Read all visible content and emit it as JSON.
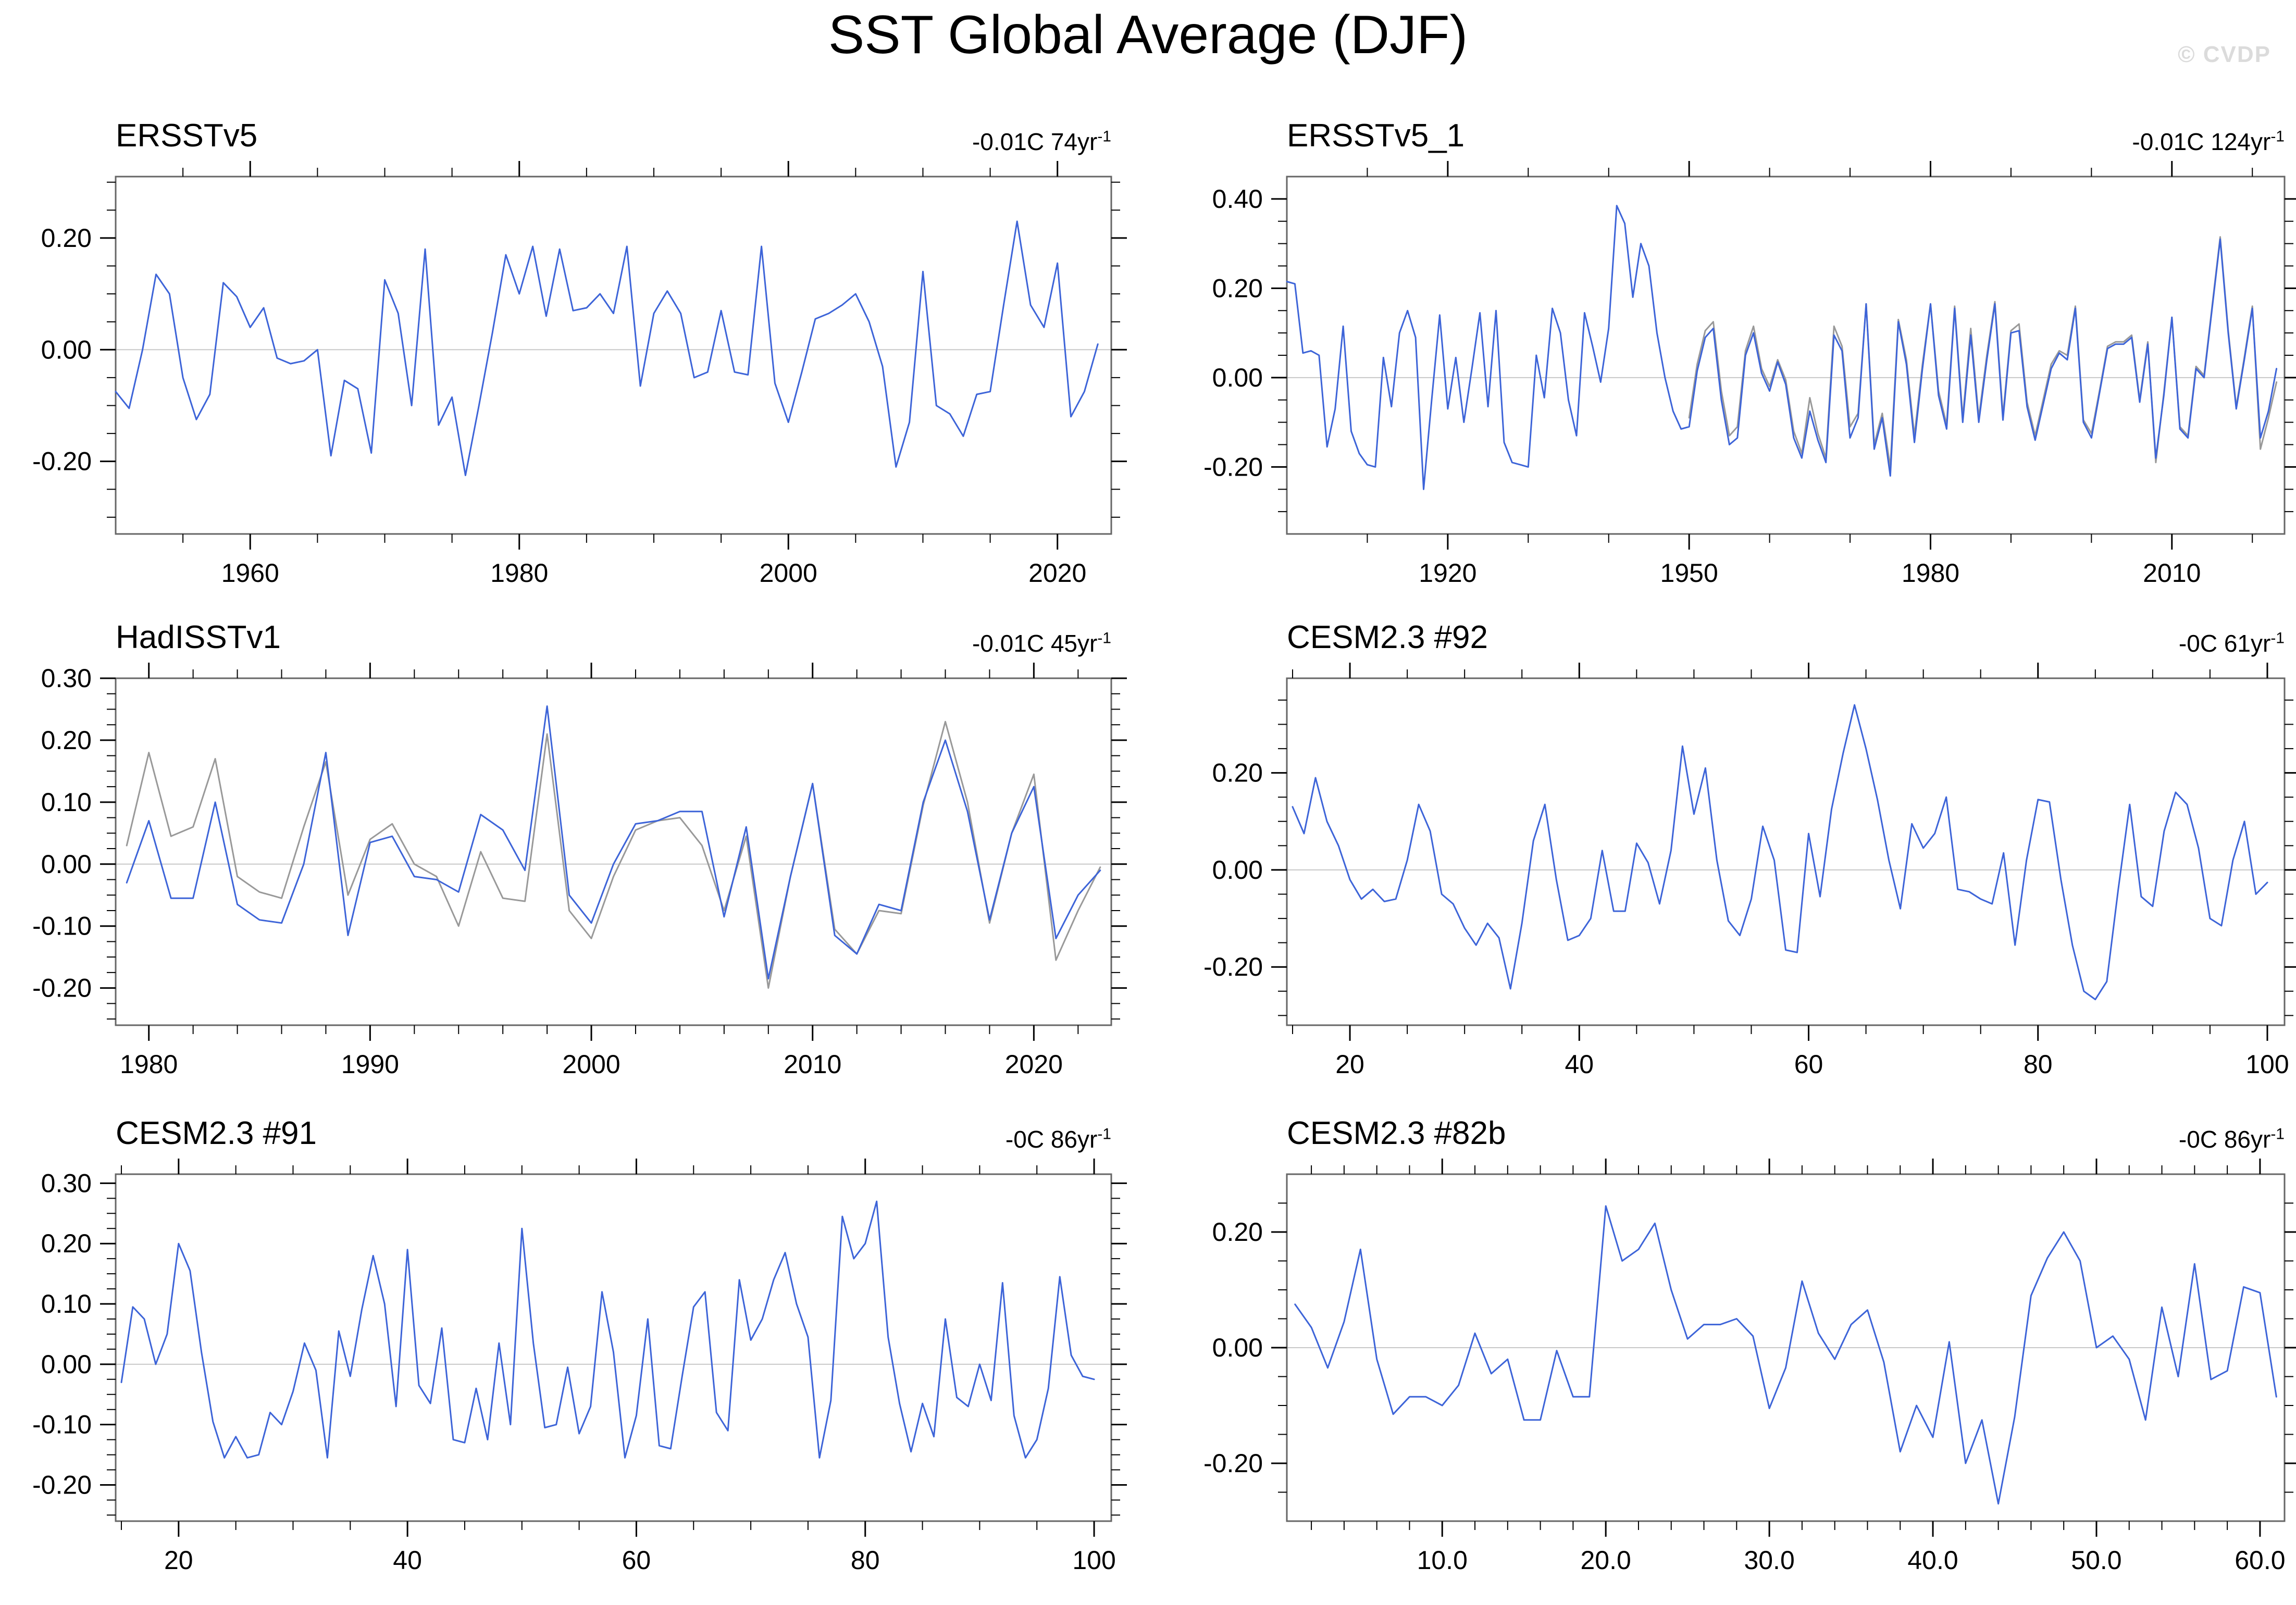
{
  "title": "SST Global Average (DJF)",
  "watermark": "© CVDP",
  "colors": {
    "series_blue": "#3D64D8",
    "series_gray": "#999999",
    "zero_line": "#C8C8C8",
    "frame": "#666666",
    "tick": "#000000",
    "watermark": "#DBDBDB"
  },
  "chart_data": [
    {
      "id": "ersstv5",
      "type": "line",
      "title": "ERSSTv5",
      "trend": "-0.01C 74yr",
      "trend_sup": "-1",
      "xlabel": "",
      "ylabel": "",
      "grid": false,
      "legend": "none",
      "x_domain": [
        1950,
        2024
      ],
      "x_major_ticks": [
        1960,
        1980,
        2000,
        2020
      ],
      "x_major_labels": [
        "1960",
        "1980",
        "2000",
        "2020"
      ],
      "x_minor_step": 5,
      "y_domain": [
        -0.33,
        0.31
      ],
      "y_major_ticks": [
        0.2,
        0.0,
        -0.2
      ],
      "y_major_labels": [
        "0.20",
        "0.00",
        "-0.20"
      ],
      "y_minor_step": 0.05,
      "zero_line": true,
      "series": [
        {
          "name": "sst-anomaly",
          "color": "#3D64D8",
          "x_start": 1950,
          "x_step": 1,
          "values": [
            -0.075,
            -0.105,
            0.0,
            0.135,
            0.1,
            -0.05,
            -0.125,
            -0.08,
            0.12,
            0.095,
            0.04,
            0.075,
            -0.015,
            -0.025,
            -0.02,
            0.0,
            -0.19,
            -0.055,
            -0.07,
            -0.185,
            0.125,
            0.065,
            -0.1,
            0.18,
            -0.135,
            -0.085,
            -0.225,
            -0.1,
            0.03,
            0.17,
            0.1,
            0.185,
            0.06,
            0.18,
            0.07,
            0.075,
            0.1,
            0.065,
            0.185,
            -0.065,
            0.065,
            0.105,
            0.065,
            -0.05,
            -0.04,
            0.07,
            -0.04,
            -0.045,
            0.185,
            -0.06,
            -0.13,
            -0.04,
            0.055,
            0.065,
            0.08,
            0.1,
            0.05,
            -0.03,
            -0.21,
            -0.13,
            0.14,
            -0.1,
            -0.115,
            -0.155,
            -0.08,
            -0.075,
            0.08,
            0.23,
            0.08,
            0.04,
            0.155,
            -0.12,
            -0.075,
            0.01
          ]
        }
      ]
    },
    {
      "id": "ersstv5-1",
      "type": "line",
      "title": "ERSSTv5_1",
      "trend": "-0.01C 124yr",
      "trend_sup": "-1",
      "xlabel": "",
      "ylabel": "",
      "grid": false,
      "legend": "none",
      "x_domain": [
        1900,
        2024
      ],
      "x_major_ticks": [
        1920,
        1950,
        1980,
        2010
      ],
      "x_major_labels": [
        "1920",
        "1950",
        "1980",
        "2010"
      ],
      "x_minor_step": 10,
      "y_domain": [
        -0.35,
        0.45
      ],
      "y_major_ticks": [
        0.4,
        0.2,
        0.0,
        -0.2
      ],
      "y_major_labels": [
        "0.40",
        "0.20",
        "0.00",
        "-0.20"
      ],
      "y_minor_step": 0.05,
      "zero_line": true,
      "series": [
        {
          "name": "reference",
          "color": "#999999",
          "x_start": 1950,
          "x_step": 1,
          "values": [
            -0.09,
            0.03,
            0.105,
            0.125,
            -0.03,
            -0.13,
            -0.11,
            0.06,
            0.115,
            0.02,
            -0.02,
            0.04,
            -0.005,
            -0.12,
            -0.17,
            -0.045,
            -0.125,
            -0.18,
            0.115,
            0.07,
            -0.11,
            -0.08,
            0.165,
            -0.15,
            -0.08,
            -0.2,
            0.13,
            0.04,
            -0.13,
            0.03,
            0.165,
            -0.03,
            -0.105,
            0.16,
            -0.09,
            0.11,
            -0.09,
            0.05,
            0.17,
            -0.085,
            0.105,
            0.12,
            -0.055,
            -0.13,
            -0.05,
            0.03,
            0.06,
            0.05,
            0.16,
            -0.095,
            -0.125,
            -0.03,
            0.07,
            0.08,
            0.08,
            0.095,
            -0.05,
            0.08,
            -0.19,
            -0.035,
            0.135,
            -0.11,
            -0.13,
            0.025,
            0.005,
            0.16,
            0.315,
            0.105,
            -0.065,
            0.045,
            0.16,
            -0.16,
            -0.09,
            -0.01
          ]
        },
        {
          "name": "sst-anomaly",
          "color": "#3D64D8",
          "x_start": 1900,
          "x_step": 1,
          "values": [
            0.215,
            0.21,
            0.055,
            0.06,
            0.05,
            -0.155,
            -0.07,
            0.115,
            -0.12,
            -0.17,
            -0.195,
            -0.2,
            0.045,
            -0.065,
            0.1,
            0.15,
            0.09,
            -0.25,
            -0.05,
            0.14,
            -0.07,
            0.045,
            -0.1,
            0.02,
            0.145,
            -0.065,
            0.15,
            -0.145,
            -0.19,
            -0.195,
            -0.2,
            0.05,
            -0.045,
            0.155,
            0.1,
            -0.05,
            -0.13,
            0.145,
            0.07,
            -0.01,
            0.11,
            0.385,
            0.345,
            0.18,
            0.3,
            0.25,
            0.1,
            0.0,
            -0.075,
            -0.115,
            -0.11,
            0.015,
            0.09,
            0.11,
            -0.05,
            -0.15,
            -0.135,
            0.05,
            0.1,
            0.01,
            -0.03,
            0.035,
            -0.015,
            -0.135,
            -0.18,
            -0.075,
            -0.14,
            -0.19,
            0.095,
            0.06,
            -0.135,
            -0.09,
            0.165,
            -0.16,
            -0.09,
            -0.22,
            0.125,
            0.03,
            -0.145,
            0.02,
            0.165,
            -0.04,
            -0.115,
            0.155,
            -0.1,
            0.095,
            -0.1,
            0.04,
            0.165,
            -0.095,
            0.1,
            0.105,
            -0.065,
            -0.14,
            -0.06,
            0.02,
            0.055,
            0.04,
            0.155,
            -0.1,
            -0.135,
            -0.035,
            0.065,
            0.075,
            0.075,
            0.09,
            -0.055,
            0.075,
            -0.18,
            -0.04,
            0.135,
            -0.115,
            -0.135,
            0.02,
            0.0,
            0.155,
            0.31,
            0.1,
            -0.07,
            0.04,
            0.155,
            -0.135,
            -0.075,
            0.02
          ]
        }
      ]
    },
    {
      "id": "hadisstv1",
      "type": "line",
      "title": "HadISSTv1",
      "trend": "-0.01C 45yr",
      "trend_sup": "-1",
      "xlabel": "",
      "ylabel": "",
      "grid": false,
      "legend": "none",
      "x_domain": [
        1978.5,
        2023.5
      ],
      "x_major_ticks": [
        1980,
        1990,
        2000,
        2010,
        2020
      ],
      "x_major_labels": [
        "1980",
        "1990",
        "2000",
        "2010",
        "2020"
      ],
      "x_minor_step": 2,
      "y_domain": [
        -0.26,
        0.3
      ],
      "y_major_ticks": [
        0.3,
        0.2,
        0.1,
        0.0,
        -0.1,
        -0.2
      ],
      "y_major_labels": [
        "0.30",
        "0.20",
        "0.10",
        "0.00",
        "-0.10",
        "-0.20"
      ],
      "y_minor_step": 0.025,
      "zero_line": true,
      "series": [
        {
          "name": "reference",
          "color": "#999999",
          "x_start": 1979,
          "x_step": 1,
          "values": [
            0.03,
            0.18,
            0.045,
            0.06,
            0.17,
            -0.02,
            -0.045,
            -0.055,
            0.06,
            0.165,
            -0.05,
            0.04,
            0.065,
            0.0,
            -0.02,
            -0.1,
            0.02,
            -0.055,
            -0.06,
            0.21,
            -0.075,
            -0.12,
            -0.02,
            0.055,
            0.07,
            0.075,
            0.03,
            -0.075,
            0.045,
            -0.2,
            -0.02,
            0.13,
            -0.105,
            -0.145,
            -0.075,
            -0.08,
            0.095,
            0.23,
            0.1,
            -0.095,
            0.05,
            0.145,
            -0.155,
            -0.075,
            -0.005
          ]
        },
        {
          "name": "sst-anomaly",
          "color": "#3D64D8",
          "x_start": 1979,
          "x_step": 1,
          "values": [
            -0.03,
            0.07,
            -0.055,
            -0.055,
            0.1,
            -0.065,
            -0.09,
            -0.095,
            0.0,
            0.18,
            -0.115,
            0.035,
            0.045,
            -0.02,
            -0.025,
            -0.045,
            0.08,
            0.055,
            -0.01,
            0.255,
            -0.05,
            -0.095,
            0.0,
            0.065,
            0.07,
            0.085,
            0.085,
            -0.085,
            0.06,
            -0.185,
            -0.02,
            0.13,
            -0.115,
            -0.145,
            -0.065,
            -0.075,
            0.1,
            0.2,
            0.085,
            -0.09,
            0.05,
            0.125,
            -0.12,
            -0.05,
            -0.01
          ]
        }
      ]
    },
    {
      "id": "cesm23-92",
      "type": "line",
      "title": "CESM2.3 #92",
      "trend": "-0C 61yr",
      "trend_sup": "-1",
      "xlabel": "",
      "ylabel": "",
      "grid": false,
      "legend": "none",
      "x_domain": [
        14.5,
        101.5
      ],
      "x_major_ticks": [
        20,
        40,
        60,
        80,
        100
      ],
      "x_major_labels": [
        "20",
        "40",
        "60",
        "80",
        "100"
      ],
      "x_minor_step": 5,
      "y_domain": [
        -0.32,
        0.395
      ],
      "y_major_ticks": [
        0.2,
        0.0,
        -0.2
      ],
      "y_major_labels": [
        "0.20",
        "0.00",
        "-0.20"
      ],
      "y_minor_step": 0.05,
      "zero_line": true,
      "series": [
        {
          "name": "sst-anomaly",
          "color": "#3D64D8",
          "x_start": 15,
          "x_step": 1,
          "values": [
            0.13,
            0.075,
            0.19,
            0.1,
            0.05,
            -0.02,
            -0.06,
            -0.04,
            -0.065,
            -0.06,
            0.02,
            0.135,
            0.08,
            -0.05,
            -0.07,
            -0.12,
            -0.155,
            -0.11,
            -0.14,
            -0.245,
            -0.11,
            0.06,
            0.135,
            -0.02,
            -0.145,
            -0.135,
            -0.1,
            0.04,
            -0.085,
            -0.085,
            0.055,
            0.015,
            -0.07,
            0.04,
            0.255,
            0.115,
            0.21,
            0.02,
            -0.105,
            -0.135,
            -0.06,
            0.09,
            0.02,
            -0.165,
            -0.17,
            0.075,
            -0.055,
            0.125,
            0.24,
            0.34,
            0.25,
            0.145,
            0.02,
            -0.08,
            0.095,
            0.045,
            0.075,
            0.15,
            -0.04,
            -0.045,
            -0.06,
            -0.07,
            0.035,
            -0.155,
            0.02,
            0.145,
            0.14,
            -0.02,
            -0.155,
            -0.25,
            -0.267,
            -0.23,
            -0.04,
            0.135,
            -0.055,
            -0.075,
            0.08,
            0.16,
            0.135,
            0.045,
            -0.1,
            -0.115,
            0.02,
            0.1,
            -0.05,
            -0.026
          ]
        }
      ]
    },
    {
      "id": "cesm23-91",
      "type": "line",
      "title": "CESM2.3 #91",
      "trend": "-0C 86yr",
      "trend_sup": "-1",
      "xlabel": "",
      "ylabel": "",
      "grid": false,
      "legend": "none",
      "x_domain": [
        14.5,
        101.5
      ],
      "x_major_ticks": [
        20,
        40,
        60,
        80,
        100
      ],
      "x_major_labels": [
        "20",
        "40",
        "60",
        "80",
        "100"
      ],
      "x_minor_step": 5,
      "y_domain": [
        -0.26,
        0.315
      ],
      "y_major_ticks": [
        0.3,
        0.2,
        0.1,
        0.0,
        -0.1,
        -0.2
      ],
      "y_major_labels": [
        "0.30",
        "0.20",
        "0.10",
        "0.00",
        "-0.10",
        "-0.20"
      ],
      "y_minor_step": 0.025,
      "zero_line": true,
      "series": [
        {
          "name": "sst-anomaly",
          "color": "#3D64D8",
          "x_start": 15,
          "x_step": 1,
          "values": [
            -0.03,
            0.095,
            0.075,
            0.0,
            0.05,
            0.2,
            0.155,
            0.02,
            -0.095,
            -0.155,
            -0.12,
            -0.155,
            -0.15,
            -0.08,
            -0.1,
            -0.045,
            0.035,
            -0.01,
            -0.155,
            0.055,
            -0.02,
            0.09,
            0.18,
            0.1,
            -0.07,
            0.19,
            -0.035,
            -0.065,
            0.06,
            -0.125,
            -0.13,
            -0.04,
            -0.125,
            0.035,
            -0.1,
            0.225,
            0.035,
            -0.105,
            -0.1,
            -0.005,
            -0.115,
            -0.07,
            0.12,
            0.02,
            -0.155,
            -0.085,
            0.075,
            -0.135,
            -0.14,
            -0.02,
            0.095,
            0.12,
            -0.08,
            -0.11,
            0.14,
            0.04,
            0.075,
            0.14,
            0.185,
            0.1,
            0.045,
            -0.155,
            -0.06,
            0.245,
            0.175,
            0.2,
            0.27,
            0.045,
            -0.065,
            -0.145,
            -0.065,
            -0.12,
            0.075,
            -0.055,
            -0.07,
            0.0,
            -0.06,
            0.135,
            -0.085,
            -0.155,
            -0.125,
            -0.04,
            0.145,
            0.015,
            -0.02,
            -0.025
          ]
        }
      ]
    },
    {
      "id": "cesm23-82b",
      "type": "line",
      "title": "CESM2.3 #82b",
      "trend": "-0C 86yr",
      "trend_sup": "-1",
      "xlabel": "",
      "ylabel": "",
      "grid": false,
      "legend": "none",
      "x_domain": [
        0.5,
        61.5
      ],
      "x_major_ticks": [
        10,
        20,
        30,
        40,
        50,
        60
      ],
      "x_major_labels": [
        "10.0",
        "20.0",
        "30.0",
        "40.0",
        "50.0",
        "60.0"
      ],
      "x_minor_step": 2,
      "y_domain": [
        -0.3,
        0.3
      ],
      "y_major_ticks": [
        0.2,
        0.0,
        -0.2
      ],
      "y_major_labels": [
        "0.20",
        "0.00",
        "-0.20"
      ],
      "y_minor_step": 0.05,
      "zero_line": true,
      "series": [
        {
          "name": "sst-anomaly",
          "color": "#3D64D8",
          "x_start": 1,
          "x_step": 1,
          "values": [
            0.075,
            0.035,
            -0.035,
            0.045,
            0.17,
            -0.02,
            -0.115,
            -0.085,
            -0.085,
            -0.1,
            -0.065,
            0.025,
            -0.045,
            -0.02,
            -0.125,
            -0.125,
            -0.005,
            -0.085,
            -0.085,
            0.245,
            0.15,
            0.17,
            0.215,
            0.1,
            0.015,
            0.04,
            0.04,
            0.05,
            0.02,
            -0.105,
            -0.035,
            0.115,
            0.025,
            -0.02,
            0.04,
            0.065,
            -0.025,
            -0.18,
            -0.1,
            -0.155,
            0.01,
            -0.2,
            -0.125,
            -0.27,
            -0.12,
            0.09,
            0.155,
            0.2,
            0.15,
            0.0,
            0.02,
            -0.02,
            -0.125,
            0.07,
            -0.05,
            0.145,
            -0.055,
            -0.04,
            0.105,
            0.095,
            -0.085
          ]
        }
      ]
    }
  ]
}
